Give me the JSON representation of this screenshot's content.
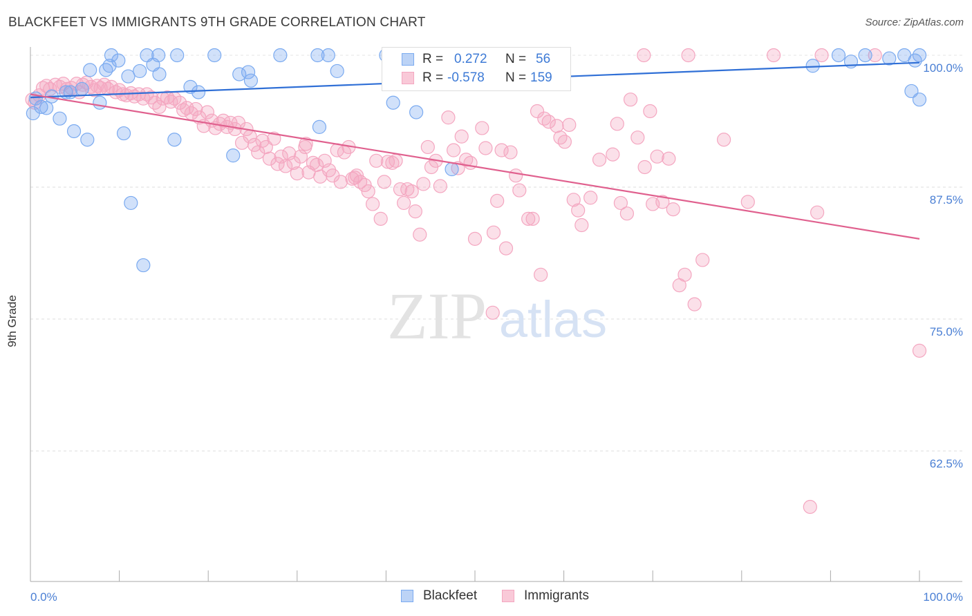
{
  "title": "BLACKFEET VS IMMIGRANTS 9TH GRADE CORRELATION CHART",
  "source": "Source: ZipAtlas.com",
  "watermark": {
    "zip": "ZIP",
    "atlas": "atlas"
  },
  "legend": {
    "rows": [
      {
        "r_label": "R =",
        "r_value": "0.272",
        "n_label": "N =",
        "n_value": "56"
      },
      {
        "r_label": "R =",
        "r_value": "-0.578",
        "n_label": "N =",
        "n_value": "159"
      }
    ]
  },
  "chart_data": {
    "type": "scatter",
    "title": "BLACKFEET VS IMMIGRANTS 9TH GRADE CORRELATION CHART",
    "xlabel": "",
    "ylabel": "9th Grade",
    "xlim": [
      0,
      100
    ],
    "ylim": [
      51,
      100.5
    ],
    "x_tick_labels": [
      "0.0%",
      "100.0%"
    ],
    "y_ticks": [
      62.5,
      75.0,
      87.5,
      100.0
    ],
    "y_tick_labels": [
      "62.5%",
      "75.0%",
      "87.5%",
      "100.0%"
    ],
    "grid": "horizontal dashed",
    "legend_position": "top-center",
    "series": [
      {
        "name": "Blackfeet",
        "color": "#7aaaf0",
        "line_color": "#2f6fd6",
        "trend": {
          "x0": 0,
          "y0": 96.0,
          "x1": 100,
          "y1": 99.3
        },
        "points": [
          [
            0.3,
            94.5
          ],
          [
            0.6,
            95.9
          ],
          [
            1.2,
            95.1
          ],
          [
            1.8,
            95.0
          ],
          [
            2.4,
            96.1
          ],
          [
            3.3,
            94.0
          ],
          [
            4.0,
            96.5
          ],
          [
            4.5,
            96.5
          ],
          [
            4.9,
            92.8
          ],
          [
            5.8,
            96.8
          ],
          [
            6.4,
            92.0
          ],
          [
            6.7,
            98.6
          ],
          [
            7.8,
            95.5
          ],
          [
            8.5,
            98.6
          ],
          [
            8.9,
            99.0
          ],
          [
            9.1,
            100.0
          ],
          [
            9.9,
            99.5
          ],
          [
            10.5,
            92.6
          ],
          [
            11.3,
            86.0
          ],
          [
            12.3,
            98.5
          ],
          [
            12.7,
            80.1
          ],
          [
            13.1,
            100.0
          ],
          [
            13.8,
            99.1
          ],
          [
            14.4,
            100.0
          ],
          [
            14.5,
            98.2
          ],
          [
            16.2,
            92.0
          ],
          [
            16.5,
            100.0
          ],
          [
            18.0,
            97.0
          ],
          [
            18.9,
            96.5
          ],
          [
            20.7,
            100.0
          ],
          [
            22.8,
            90.5
          ],
          [
            23.5,
            98.2
          ],
          [
            24.5,
            98.4
          ],
          [
            24.8,
            97.6
          ],
          [
            28.1,
            100.0
          ],
          [
            32.3,
            100.0
          ],
          [
            32.5,
            93.2
          ],
          [
            33.5,
            100.0
          ],
          [
            34.5,
            98.5
          ],
          [
            40.8,
            95.5
          ],
          [
            43.4,
            94.6
          ],
          [
            44.4,
            100.0
          ],
          [
            47.4,
            89.2
          ],
          [
            90.9,
            100.0
          ],
          [
            92.3,
            99.4
          ],
          [
            93.9,
            100.0
          ],
          [
            96.6,
            99.7
          ],
          [
            98.3,
            100.0
          ],
          [
            99.1,
            96.6
          ],
          [
            100.0,
            95.8
          ],
          [
            100.0,
            100.0
          ],
          [
            99.5,
            99.5
          ],
          [
            40.0,
            100.0
          ],
          [
            45.0,
            100.0
          ],
          [
            88.0,
            99.0
          ],
          [
            11.0,
            98.0
          ]
        ]
      },
      {
        "name": "Immigrants",
        "color": "#f4a6c0",
        "line_color": "#e0608e",
        "trend": {
          "x0": 0,
          "y0": 96.3,
          "x1": 100,
          "y1": 82.6
        },
        "points": [
          [
            0.2,
            95.8
          ],
          [
            0.5,
            95.5
          ],
          [
            1.0,
            96.2
          ],
          [
            1.4,
            96.9
          ],
          [
            1.8,
            97.1
          ],
          [
            2.2,
            96.8
          ],
          [
            2.8,
            97.2
          ],
          [
            3.3,
            97.0
          ],
          [
            3.7,
            97.3
          ],
          [
            4.1,
            96.8
          ],
          [
            4.6,
            96.9
          ],
          [
            5.2,
            97.3
          ],
          [
            5.5,
            96.5
          ],
          [
            5.9,
            97.2
          ],
          [
            6.3,
            97.4
          ],
          [
            6.8,
            97.0
          ],
          [
            7.2,
            96.7
          ],
          [
            7.5,
            97.1
          ],
          [
            7.9,
            96.9
          ],
          [
            8.3,
            97.2
          ],
          [
            8.7,
            96.8
          ],
          [
            9.1,
            97.0
          ],
          [
            9.6,
            96.5
          ],
          [
            10.0,
            96.7
          ],
          [
            10.4,
            96.3
          ],
          [
            10.8,
            96.2
          ],
          [
            11.3,
            96.4
          ],
          [
            11.7,
            96.1
          ],
          [
            12.2,
            96.3
          ],
          [
            12.7,
            95.9
          ],
          [
            13.1,
            96.3
          ],
          [
            13.6,
            96.0
          ],
          [
            14.0,
            95.5
          ],
          [
            14.5,
            95.1
          ],
          [
            14.9,
            95.9
          ],
          [
            15.4,
            96.0
          ],
          [
            15.8,
            95.6
          ],
          [
            16.2,
            95.9
          ],
          [
            16.8,
            95.5
          ],
          [
            17.2,
            94.8
          ],
          [
            17.6,
            95.0
          ],
          [
            18.1,
            94.5
          ],
          [
            18.6,
            94.9
          ],
          [
            19.0,
            94.1
          ],
          [
            19.5,
            93.3
          ],
          [
            19.9,
            94.6
          ],
          [
            20.4,
            93.8
          ],
          [
            20.8,
            93.1
          ],
          [
            21.3,
            93.5
          ],
          [
            21.7,
            93.8
          ],
          [
            22.1,
            93.2
          ],
          [
            22.5,
            93.6
          ],
          [
            23.0,
            93.0
          ],
          [
            23.4,
            93.6
          ],
          [
            23.8,
            91.7
          ],
          [
            24.3,
            93.0
          ],
          [
            24.7,
            92.3
          ],
          [
            25.2,
            91.5
          ],
          [
            25.6,
            90.8
          ],
          [
            26.1,
            91.9
          ],
          [
            26.5,
            91.3
          ],
          [
            26.9,
            90.2
          ],
          [
            27.4,
            92.1
          ],
          [
            27.8,
            89.7
          ],
          [
            28.2,
            90.4
          ],
          [
            28.7,
            89.5
          ],
          [
            29.1,
            90.7
          ],
          [
            29.6,
            89.8
          ],
          [
            30.0,
            88.8
          ],
          [
            30.4,
            90.4
          ],
          [
            30.9,
            91.3
          ],
          [
            31.3,
            88.9
          ],
          [
            31.8,
            89.8
          ],
          [
            32.2,
            89.6
          ],
          [
            32.6,
            88.5
          ],
          [
            33.1,
            90.0
          ],
          [
            33.6,
            89.1
          ],
          [
            34.0,
            88.6
          ],
          [
            34.5,
            91.0
          ],
          [
            34.9,
            88.0
          ],
          [
            35.3,
            90.8
          ],
          [
            35.8,
            91.3
          ],
          [
            36.2,
            88.3
          ],
          [
            36.7,
            88.6
          ],
          [
            37.1,
            88.0
          ],
          [
            37.6,
            87.7
          ],
          [
            38.0,
            87.1
          ],
          [
            38.5,
            85.9
          ],
          [
            38.9,
            90.0
          ],
          [
            39.4,
            84.5
          ],
          [
            39.8,
            88.0
          ],
          [
            40.2,
            89.9
          ],
          [
            40.7,
            89.8
          ],
          [
            41.1,
            90.0
          ],
          [
            41.6,
            87.3
          ],
          [
            42.0,
            86.0
          ],
          [
            42.4,
            87.3
          ],
          [
            42.9,
            87.1
          ],
          [
            43.3,
            85.2
          ],
          [
            43.8,
            83.0
          ],
          [
            44.2,
            87.8
          ],
          [
            44.7,
            91.3
          ],
          [
            45.1,
            89.4
          ],
          [
            45.6,
            90.0
          ],
          [
            46.1,
            87.6
          ],
          [
            47.0,
            94.1
          ],
          [
            47.6,
            91.0
          ],
          [
            48.1,
            89.3
          ],
          [
            48.5,
            92.3
          ],
          [
            49.0,
            90.1
          ],
          [
            49.5,
            89.8
          ],
          [
            50.0,
            82.6
          ],
          [
            50.8,
            93.1
          ],
          [
            51.2,
            91.2
          ],
          [
            52.1,
            83.2
          ],
          [
            52.5,
            86.2
          ],
          [
            53.0,
            91.0
          ],
          [
            53.5,
            81.7
          ],
          [
            54.0,
            90.8
          ],
          [
            54.6,
            88.6
          ],
          [
            55.0,
            87.2
          ],
          [
            56.0,
            84.5
          ],
          [
            56.5,
            84.5
          ],
          [
            57.0,
            94.7
          ],
          [
            57.4,
            79.2
          ],
          [
            57.8,
            94.0
          ],
          [
            58.3,
            93.7
          ],
          [
            59.2,
            93.3
          ],
          [
            59.6,
            92.2
          ],
          [
            60.1,
            91.8
          ],
          [
            60.6,
            93.4
          ],
          [
            61.1,
            86.3
          ],
          [
            61.6,
            85.3
          ],
          [
            62.0,
            83.9
          ],
          [
            63.0,
            86.5
          ],
          [
            64.0,
            90.1
          ],
          [
            65.5,
            90.6
          ],
          [
            66.0,
            93.5
          ],
          [
            66.4,
            86.0
          ],
          [
            67.1,
            85.0
          ],
          [
            67.5,
            95.8
          ],
          [
            68.3,
            92.2
          ],
          [
            69.1,
            89.4
          ],
          [
            69.7,
            94.7
          ],
          [
            70.0,
            85.9
          ],
          [
            70.5,
            90.4
          ],
          [
            71.1,
            86.1
          ],
          [
            71.8,
            90.2
          ],
          [
            72.3,
            85.4
          ],
          [
            73.0,
            78.2
          ],
          [
            73.6,
            79.2
          ],
          [
            74.7,
            76.4
          ],
          [
            75.6,
            80.6
          ],
          [
            78.0,
            92.0
          ],
          [
            80.7,
            86.1
          ],
          [
            83.6,
            100.0
          ],
          [
            87.7,
            57.2
          ],
          [
            88.5,
            85.1
          ],
          [
            100.0,
            72.0
          ],
          [
            69.0,
            100.0
          ],
          [
            74.0,
            100.0
          ],
          [
            89.0,
            100.0
          ],
          [
            95.0,
            100.0
          ],
          [
            52.0,
            75.6
          ],
          [
            31.0,
            91.6
          ],
          [
            36.5,
            88.4
          ]
        ]
      }
    ]
  },
  "x_axis": {
    "left_label": "0.0%",
    "right_label": "100.0%"
  },
  "bottom_legend": {
    "items": [
      {
        "label": "Blackfeet"
      },
      {
        "label": "Immigrants"
      }
    ]
  }
}
